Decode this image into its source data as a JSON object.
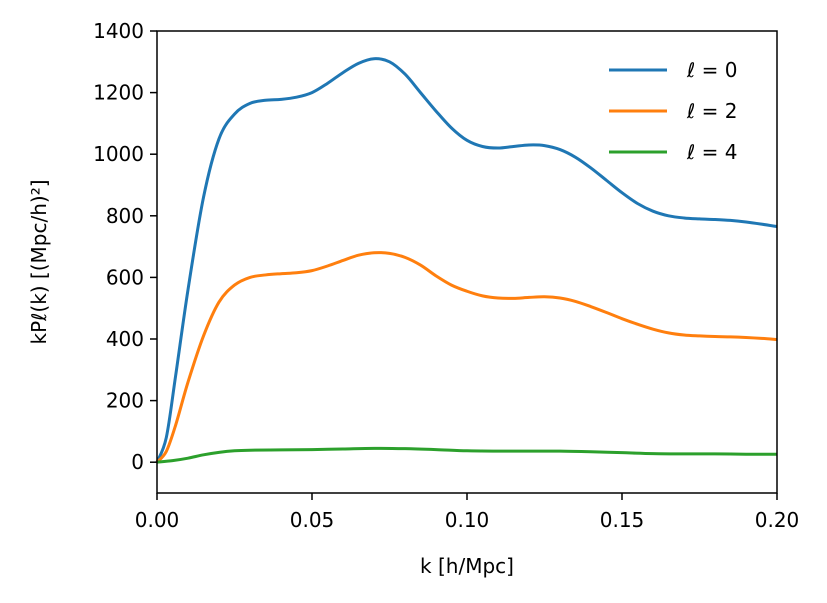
{
  "chart_data": {
    "type": "line",
    "xlabel": "k [h/Mpc]",
    "ylabel": "kPℓ(k) [(Mpc/h)²]",
    "xlim": [
      0.0,
      0.2
    ],
    "ylim": [
      -100,
      1400
    ],
    "xticks": [
      0.0,
      0.05,
      0.1,
      0.15,
      0.2
    ],
    "xtick_labels": [
      "0.00",
      "0.05",
      "0.10",
      "0.15",
      "0.20"
    ],
    "yticks": [
      0,
      200,
      400,
      600,
      800,
      1000,
      1200,
      1400
    ],
    "ytick_labels": [
      "0",
      "200",
      "400",
      "600",
      "800",
      "1000",
      "1200",
      "1400"
    ],
    "grid": false,
    "legend_position": "top-right",
    "series": [
      {
        "name": "ℓ = 0",
        "color": "#1f77b4",
        "x": [
          0.0,
          0.003,
          0.006,
          0.01,
          0.015,
          0.02,
          0.025,
          0.03,
          0.035,
          0.04,
          0.045,
          0.05,
          0.055,
          0.06,
          0.065,
          0.07,
          0.075,
          0.08,
          0.085,
          0.09,
          0.095,
          0.1,
          0.105,
          0.11,
          0.115,
          0.12,
          0.125,
          0.13,
          0.135,
          0.14,
          0.145,
          0.15,
          0.155,
          0.16,
          0.165,
          0.17,
          0.175,
          0.18,
          0.185,
          0.19,
          0.195,
          0.2
        ],
        "y": [
          0,
          80,
          280,
          560,
          860,
          1050,
          1130,
          1165,
          1175,
          1178,
          1185,
          1200,
          1230,
          1265,
          1295,
          1310,
          1300,
          1260,
          1200,
          1140,
          1085,
          1045,
          1025,
          1020,
          1025,
          1030,
          1028,
          1015,
          990,
          955,
          915,
          875,
          840,
          815,
          800,
          793,
          790,
          788,
          785,
          780,
          773,
          765
        ]
      },
      {
        "name": "ℓ = 2",
        "color": "#ff7f0e",
        "x": [
          0.0,
          0.003,
          0.006,
          0.01,
          0.015,
          0.02,
          0.025,
          0.03,
          0.035,
          0.04,
          0.045,
          0.05,
          0.055,
          0.06,
          0.065,
          0.07,
          0.075,
          0.08,
          0.085,
          0.09,
          0.095,
          0.1,
          0.105,
          0.11,
          0.115,
          0.12,
          0.125,
          0.13,
          0.135,
          0.14,
          0.145,
          0.15,
          0.155,
          0.16,
          0.165,
          0.17,
          0.175,
          0.18,
          0.185,
          0.19,
          0.195,
          0.2
        ],
        "y": [
          0,
          35,
          120,
          260,
          410,
          520,
          575,
          600,
          608,
          612,
          615,
          622,
          637,
          655,
          672,
          680,
          678,
          665,
          640,
          605,
          575,
          555,
          540,
          533,
          532,
          535,
          537,
          533,
          522,
          505,
          486,
          466,
          448,
          432,
          420,
          413,
          410,
          408,
          407,
          405,
          402,
          398
        ]
      },
      {
        "name": "ℓ = 4",
        "color": "#2ca02c",
        "x": [
          0.0,
          0.005,
          0.01,
          0.015,
          0.02,
          0.025,
          0.03,
          0.04,
          0.05,
          0.06,
          0.07,
          0.08,
          0.09,
          0.1,
          0.11,
          0.12,
          0.13,
          0.14,
          0.15,
          0.16,
          0.17,
          0.18,
          0.19,
          0.2
        ],
        "y": [
          0,
          5,
          13,
          24,
          32,
          37,
          39,
          40,
          41,
          43,
          45,
          44,
          41,
          37,
          36,
          36,
          36,
          34,
          31,
          28,
          27,
          27,
          26,
          26
        ]
      }
    ]
  }
}
